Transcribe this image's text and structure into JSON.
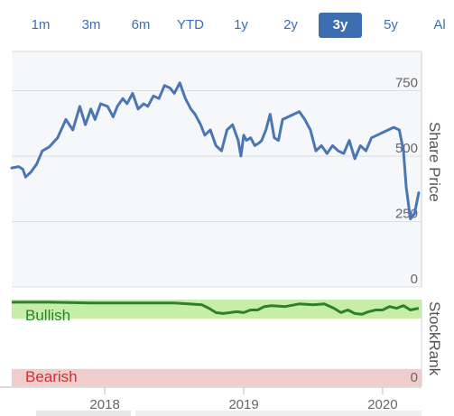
{
  "range_selector": {
    "options": [
      "1m",
      "3m",
      "6m",
      "YTD",
      "1y",
      "2y",
      "3y",
      "5y",
      "Al"
    ],
    "selected": "3y"
  },
  "colors": {
    "line": "#4a77b4",
    "plot_bg": "#f6f7fb",
    "bullish_zone": "#c6eeaa",
    "bearish_zone": "#f1cccc",
    "rank_line": "#2f7f2f",
    "bullish_text": "#2f7f2f",
    "bearish_text": "#cc3333",
    "accent": "#3d6fb0"
  },
  "chart_data": [
    {
      "type": "line",
      "title": "",
      "ylabel": "Share Price",
      "xlabel": "",
      "x_tick_labels": [
        "2018",
        "2019",
        "2020"
      ],
      "y_tick_labels": [
        "0",
        "250",
        "500",
        "750"
      ],
      "ylim": [
        0,
        900
      ],
      "xlim": [
        2017.33,
        2020.28
      ],
      "grid": "horizontal",
      "series": [
        {
          "x": [
            2017.33,
            2017.38,
            2017.41,
            2017.43,
            2017.47,
            2017.51,
            2017.55,
            2017.6,
            2017.66,
            2017.72,
            2017.77,
            2017.82,
            2017.86,
            2017.9,
            2017.93,
            2017.97,
            2018.02,
            2018.06,
            2018.09,
            2018.13,
            2018.16,
            2018.2,
            2018.24,
            2018.28,
            2018.31,
            2018.35,
            2018.39,
            2018.43,
            2018.47,
            2018.5,
            2018.54,
            2018.58,
            2018.62,
            2018.65,
            2018.69,
            2018.72,
            2018.76,
            2018.8,
            2018.84,
            2018.88,
            2018.92,
            2018.96,
            2018.98,
            2019.0,
            2019.02,
            2019.05,
            2019.08,
            2019.11,
            2019.13,
            2019.16,
            2019.19,
            2019.22,
            2019.25,
            2019.28,
            2019.32,
            2019.36,
            2019.4,
            2019.44,
            2019.48,
            2019.52,
            2019.56,
            2019.6,
            2019.64,
            2019.68,
            2019.72,
            2019.76,
            2019.8,
            2019.84,
            2019.88,
            2019.92,
            2019.96,
            2020.0,
            2020.04,
            2020.08,
            2020.12,
            2020.15,
            2020.17,
            2020.2,
            2020.23,
            2020.26
          ],
          "y": [
            455,
            460,
            450,
            420,
            440,
            470,
            520,
            535,
            570,
            640,
            600,
            690,
            620,
            680,
            640,
            700,
            690,
            650,
            690,
            720,
            700,
            740,
            680,
            700,
            690,
            730,
            720,
            770,
            760,
            740,
            780,
            720,
            680,
            660,
            620,
            580,
            600,
            540,
            520,
            600,
            620,
            560,
            500,
            580,
            560,
            570,
            540,
            550,
            560,
            600,
            660,
            570,
            560,
            640,
            650,
            660,
            670,
            640,
            600,
            520,
            540,
            510,
            540,
            520,
            510,
            560,
            490,
            540,
            520,
            570,
            580,
            590,
            600,
            610,
            600,
            520,
            380,
            260,
            280,
            360
          ]
        }
      ]
    },
    {
      "type": "line",
      "title": "",
      "ylabel": "StockRank",
      "xlabel": "",
      "y_tick_labels": [
        "0"
      ],
      "ylim": [
        0,
        100
      ],
      "xlim": [
        2017.33,
        2020.28
      ],
      "zones": [
        {
          "label": "Bullish",
          "from": 78,
          "to": 100
        },
        {
          "label": "Bearish",
          "from": 0,
          "to": 20
        }
      ],
      "series": [
        {
          "x": [
            2017.33,
            2017.6,
            2017.9,
            2018.2,
            2018.5,
            2018.7,
            2018.75,
            2018.8,
            2018.85,
            2018.95,
            2019.0,
            2019.05,
            2019.1,
            2019.15,
            2019.2,
            2019.3,
            2019.4,
            2019.5,
            2019.58,
            2019.65,
            2019.7,
            2019.75,
            2019.8,
            2019.85,
            2019.9,
            2019.95,
            2020.0,
            2020.05,
            2020.1,
            2020.15,
            2020.2,
            2020.26
          ],
          "y": [
            97,
            97,
            96,
            96,
            96,
            94,
            90,
            85,
            84,
            86,
            85,
            88,
            88,
            92,
            93,
            92,
            95,
            94,
            95,
            90,
            85,
            88,
            84,
            83,
            86,
            88,
            88,
            92,
            90,
            93,
            88,
            90
          ]
        }
      ]
    }
  ]
}
